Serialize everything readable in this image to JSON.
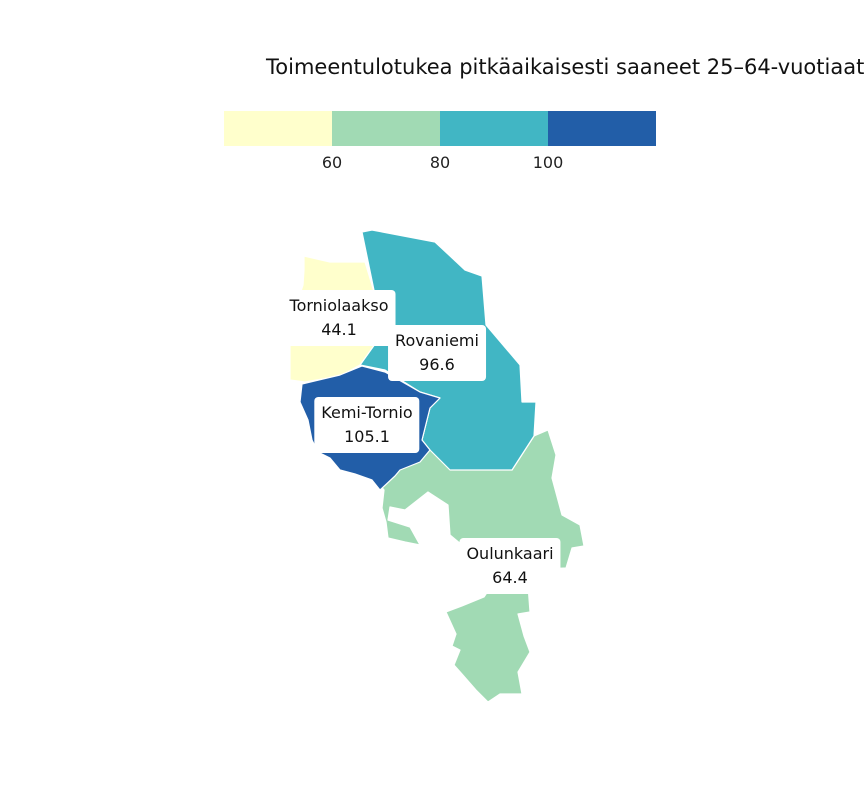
{
  "title": "Toimeentulotukea pitkäaikaisesti saaneet 25–64-vuotiaat",
  "legend": {
    "colors": [
      "#ffffcc",
      "#a1dab4",
      "#41b6c4",
      "#225ea8"
    ],
    "ticks": [
      "60",
      "80",
      "100"
    ]
  },
  "regions": [
    {
      "name": "Torniolaakso",
      "value": "44.1",
      "color": "#ffffcc"
    },
    {
      "name": "Rovaniemi",
      "value": "96.6",
      "color": "#41b6c4"
    },
    {
      "name": "Kemi-Tornio",
      "value": "105.1",
      "color": "#225ea8"
    },
    {
      "name": "Oulunkaari",
      "value": "64.4",
      "color": "#a1dab4"
    }
  ]
}
